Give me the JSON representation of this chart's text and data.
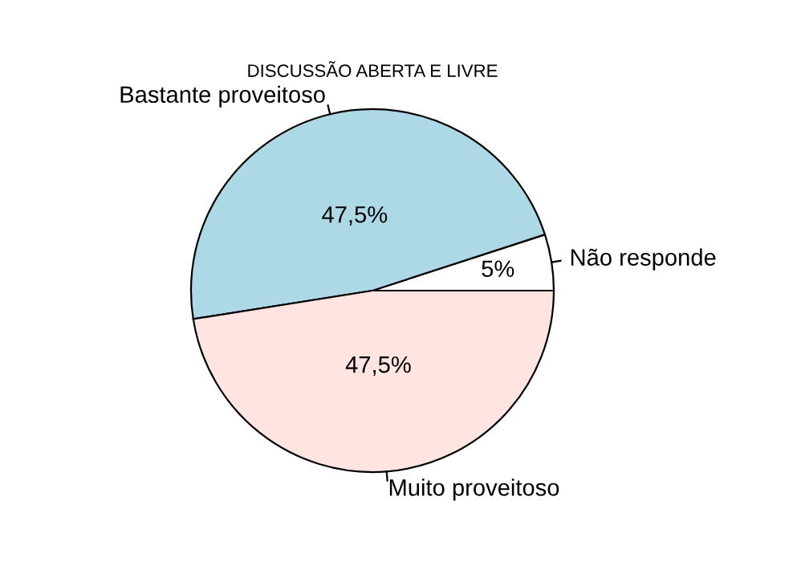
{
  "chart_data": {
    "type": "pie",
    "title": "DISCUSSÃO ABERTA E LIVRE",
    "categories": [
      "Não responde",
      "Bastante proveitoso",
      "Muito proveitoso"
    ],
    "values": [
      5,
      47.5,
      47.5
    ],
    "colors": [
      "#ffffff",
      "#add8e6",
      "#ffe4e1"
    ],
    "value_labels": [
      "5%",
      "47,5%",
      "47,5%"
    ]
  }
}
